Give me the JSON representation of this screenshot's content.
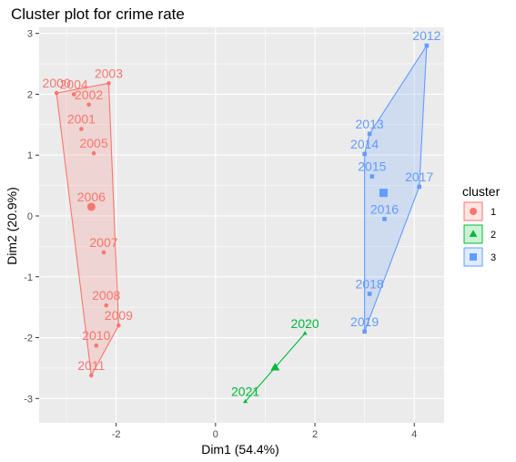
{
  "chart_data": {
    "type": "scatter",
    "title": "Cluster plot for crime rate",
    "xlabel": "Dim1 (54.4%)",
    "ylabel": "Dim2 (20.9%)",
    "xlim": [
      -3.55,
      4.6
    ],
    "ylim": [
      -3.4,
      3.1
    ],
    "x_ticks": [
      -2,
      0,
      2,
      4
    ],
    "y_ticks": [
      -3,
      -2,
      -1,
      0,
      1,
      2,
      3
    ],
    "x_tick_labels": [
      "-2",
      "0",
      "2",
      "4"
    ],
    "y_tick_labels": [
      "-3",
      "-2",
      "-1",
      "0",
      "1",
      "2",
      "3"
    ],
    "grid": true,
    "legend_position": "right",
    "legend_title": "cluster",
    "series": [
      {
        "name": "1",
        "color": "#F8766D",
        "marker": "circle",
        "hull": [
          [
            -3.2,
            2.02
          ],
          [
            -2.15,
            2.18
          ],
          [
            -1.95,
            -1.8
          ],
          [
            -2.5,
            -2.62
          ]
        ],
        "centroid": [
          -2.5,
          0.15
        ],
        "points": [
          {
            "label": "2000",
            "x": -3.2,
            "y": 2.02
          },
          {
            "label": "2004",
            "x": -2.85,
            "y": 2.0
          },
          {
            "label": "2003",
            "x": -2.15,
            "y": 2.18
          },
          {
            "label": "2002",
            "x": -2.55,
            "y": 1.83
          },
          {
            "label": "2001",
            "x": -2.7,
            "y": 1.43
          },
          {
            "label": "2005",
            "x": -2.45,
            "y": 1.03
          },
          {
            "label": "2006",
            "x": -2.5,
            "y": 0.15
          },
          {
            "label": "2007",
            "x": -2.25,
            "y": -0.6
          },
          {
            "label": "2008",
            "x": -2.2,
            "y": -1.47
          },
          {
            "label": "2009",
            "x": -1.95,
            "y": -1.8
          },
          {
            "label": "2010",
            "x": -2.4,
            "y": -2.13
          },
          {
            "label": "2011",
            "x": -2.5,
            "y": -2.62
          }
        ]
      },
      {
        "name": "2",
        "color": "#00BA38",
        "marker": "triangle",
        "hull": [
          [
            0.6,
            -3.05
          ],
          [
            1.8,
            -1.93
          ]
        ],
        "centroid": [
          1.2,
          -2.49
        ],
        "points": [
          {
            "label": "2020",
            "x": 1.8,
            "y": -1.93
          },
          {
            "label": "2021",
            "x": 0.6,
            "y": -3.05
          }
        ]
      },
      {
        "name": "3",
        "color": "#619CFF",
        "marker": "square",
        "hull": [
          [
            4.25,
            2.8
          ],
          [
            4.1,
            0.48
          ],
          [
            3.0,
            -1.9
          ],
          [
            3.0,
            1.02
          ],
          [
            3.1,
            1.35
          ]
        ],
        "centroid": [
          3.38,
          0.38
        ],
        "points": [
          {
            "label": "2012",
            "x": 4.25,
            "y": 2.8
          },
          {
            "label": "2013",
            "x": 3.1,
            "y": 1.35
          },
          {
            "label": "2014",
            "x": 3.0,
            "y": 1.02
          },
          {
            "label": "2015",
            "x": 3.15,
            "y": 0.65
          },
          {
            "label": "2017",
            "x": 4.1,
            "y": 0.48
          },
          {
            "label": "2016",
            "x": 3.4,
            "y": -0.05
          },
          {
            "label": "2018",
            "x": 3.1,
            "y": -1.28
          },
          {
            "label": "2019",
            "x": 3.0,
            "y": -1.9
          }
        ]
      }
    ]
  }
}
